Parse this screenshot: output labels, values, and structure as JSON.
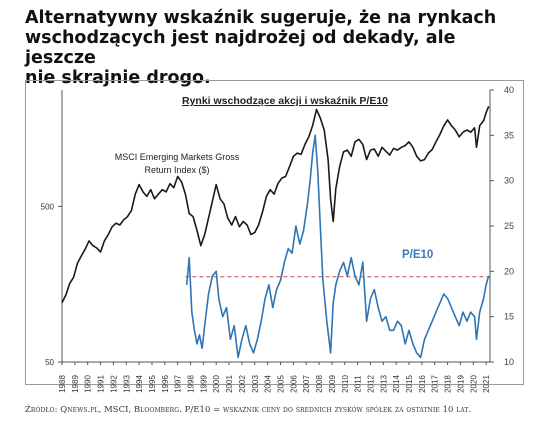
{
  "headline": {
    "line1": "Alternatywny wskaźnik sugeruje, że na rynkach",
    "line2": "wschodzących jest najdrożej od dekady, ale jeszcze",
    "line3": "nie skrajnie drogo."
  },
  "source": "Źródło: Qnews.pl, MSCI, Bloomberg. P/E10 = wskaźnik ceny do średnich zysków spółek za ostatnie 10 lat.",
  "colors": {
    "index": "#1a1a1a",
    "pe10": "#2f74b5",
    "pe10_label": "#3a78c0",
    "reference": "#c0504d",
    "axis": "#555555",
    "frame": "#9a9a9a"
  },
  "chart_data": {
    "type": "line",
    "title": "Rynki wschodzące akcji i wskaźnik P/E10",
    "x_ticks": [
      "1988",
      "1989",
      "1990",
      "1991",
      "1992",
      "1993",
      "1994",
      "1995",
      "1996",
      "1997",
      "1998",
      "1999",
      "2000",
      "2001",
      "2002",
      "2003",
      "2004",
      "2005",
      "2006",
      "2007",
      "2008",
      "2009",
      "2010",
      "2011",
      "2012",
      "2013",
      "2014",
      "2015",
      "2016",
      "2017",
      "2018",
      "2019",
      "2020",
      "2021"
    ],
    "left_axis": {
      "scale": "log",
      "ticks": [
        50,
        500
      ],
      "ylim": [
        50,
        2800
      ]
    },
    "right_axis": {
      "ticks": [
        10,
        15,
        20,
        25,
        30,
        35,
        40
      ],
      "ylim": [
        10,
        40
      ]
    },
    "grid": false,
    "series": [
      {
        "name": "MSCI Emerging Markets Gross Return Index ($)",
        "axis": "left",
        "x": [
          1988.0,
          1988.3,
          1988.6,
          1988.9,
          1989.2,
          1989.5,
          1989.8,
          1990.1,
          1990.4,
          1990.7,
          1991.0,
          1991.3,
          1991.6,
          1991.9,
          1992.2,
          1992.5,
          1992.8,
          1993.1,
          1993.4,
          1993.7,
          1994.0,
          1994.3,
          1994.6,
          1994.9,
          1995.2,
          1995.5,
          1995.8,
          1996.1,
          1996.4,
          1996.7,
          1997.0,
          1997.3,
          1997.6,
          1997.9,
          1998.2,
          1998.5,
          1998.8,
          1999.1,
          1999.4,
          1999.7,
          2000.0,
          2000.3,
          2000.6,
          2000.9,
          2001.2,
          2001.5,
          2001.8,
          2002.1,
          2002.4,
          2002.7,
          2003.0,
          2003.3,
          2003.6,
          2003.9,
          2004.2,
          2004.5,
          2004.8,
          2005.1,
          2005.4,
          2005.7,
          2006.0,
          2006.3,
          2006.6,
          2006.9,
          2007.2,
          2007.5,
          2007.8,
          2008.1,
          2008.4,
          2008.7,
          2008.9,
          2009.1,
          2009.3,
          2009.6,
          2009.9,
          2010.2,
          2010.5,
          2010.8,
          2011.1,
          2011.4,
          2011.7,
          2012.0,
          2012.3,
          2012.6,
          2012.9,
          2013.2,
          2013.5,
          2013.8,
          2014.1,
          2014.4,
          2014.7,
          2015.0,
          2015.3,
          2015.6,
          2015.9,
          2016.2,
          2016.5,
          2016.8,
          2017.1,
          2017.4,
          2017.7,
          2018.0,
          2018.3,
          2018.6,
          2018.9,
          2019.2,
          2019.5,
          2019.8,
          2020.1,
          2020.25,
          2020.5,
          2020.8,
          2021.0,
          2021.2
        ],
        "values": [
          120,
          135,
          160,
          175,
          215,
          240,
          265,
          300,
          280,
          270,
          255,
          300,
          330,
          370,
          390,
          380,
          410,
          430,
          470,
          600,
          690,
          620,
          580,
          640,
          560,
          600,
          640,
          620,
          700,
          660,
          780,
          720,
          600,
          450,
          430,
          350,
          280,
          330,
          420,
          540,
          690,
          560,
          520,
          420,
          380,
          430,
          370,
          400,
          380,
          330,
          340,
          380,
          460,
          580,
          640,
          600,
          700,
          760,
          780,
          900,
          1050,
          1100,
          1080,
          1250,
          1400,
          1650,
          2100,
          1850,
          1550,
          1000,
          560,
          400,
          650,
          900,
          1120,
          1150,
          1050,
          1300,
          1350,
          1250,
          1000,
          1150,
          1170,
          1050,
          1200,
          1130,
          1070,
          1180,
          1150,
          1200,
          1230,
          1300,
          1200,
          1050,
          980,
          1000,
          1100,
          1160,
          1300,
          1450,
          1640,
          1800,
          1650,
          1550,
          1400,
          1500,
          1550,
          1500,
          1600,
          1200,
          1650,
          1780,
          2000,
          2200
        ]
      },
      {
        "name": "P/E10",
        "axis": "right",
        "x": [
          1997.7,
          1997.9,
          1998.1,
          1998.3,
          1998.5,
          1998.7,
          1998.9,
          1999.1,
          1999.4,
          1999.7,
          2000.0,
          2000.2,
          2000.5,
          2000.8,
          2001.1,
          2001.4,
          2001.7,
          2002.0,
          2002.3,
          2002.6,
          2002.9,
          2003.2,
          2003.5,
          2003.8,
          2004.1,
          2004.4,
          2004.7,
          2005.0,
          2005.3,
          2005.6,
          2005.9,
          2006.2,
          2006.5,
          2006.8,
          2007.1,
          2007.3,
          2007.5,
          2007.7,
          2007.9,
          2008.1,
          2008.3,
          2008.6,
          2008.9,
          2009.1,
          2009.3,
          2009.6,
          2009.9,
          2010.2,
          2010.5,
          2010.8,
          2011.1,
          2011.4,
          2011.7,
          2012.0,
          2012.3,
          2012.6,
          2012.9,
          2013.2,
          2013.5,
          2013.8,
          2014.1,
          2014.4,
          2014.7,
          2015.0,
          2015.3,
          2015.6,
          2015.9,
          2016.2,
          2016.5,
          2016.8,
          2017.1,
          2017.4,
          2017.7,
          2018.0,
          2018.3,
          2018.6,
          2018.9,
          2019.2,
          2019.5,
          2019.8,
          2020.1,
          2020.25,
          2020.5,
          2020.8,
          2021.0,
          2021.2
        ],
        "values": [
          18.5,
          21.5,
          15.5,
          13.5,
          12.0,
          13.0,
          11.5,
          14.0,
          17.5,
          19.5,
          20.0,
          17.0,
          15.0,
          16.0,
          12.5,
          14.0,
          10.5,
          12.5,
          14.0,
          12.0,
          11.0,
          12.5,
          14.5,
          17.0,
          18.5,
          16.0,
          18.0,
          19.0,
          21.0,
          22.5,
          22.0,
          25.0,
          23.0,
          24.5,
          27.5,
          30.0,
          33.0,
          35.0,
          31.0,
          25.0,
          19.0,
          14.5,
          11.0,
          16.5,
          18.5,
          20.0,
          21.0,
          19.5,
          21.5,
          19.5,
          18.5,
          21.0,
          14.5,
          17.0,
          18.0,
          16.0,
          14.5,
          15.0,
          13.5,
          13.5,
          14.5,
          14.0,
          12.0,
          13.5,
          12.0,
          11.0,
          10.5,
          12.5,
          13.5,
          14.5,
          15.5,
          16.5,
          17.5,
          17.0,
          16.0,
          15.0,
          14.0,
          15.5,
          14.5,
          15.5,
          15.0,
          12.5,
          15.5,
          17.0,
          18.5,
          19.5
        ]
      }
    ],
    "reference_line": {
      "axis": "right",
      "value": 19.4
    },
    "annotations": {
      "index_label_line1": "MSCI Emerging Markets Gross",
      "index_label_line2": "Return Index ($)",
      "pe_label": "P/E10"
    }
  }
}
